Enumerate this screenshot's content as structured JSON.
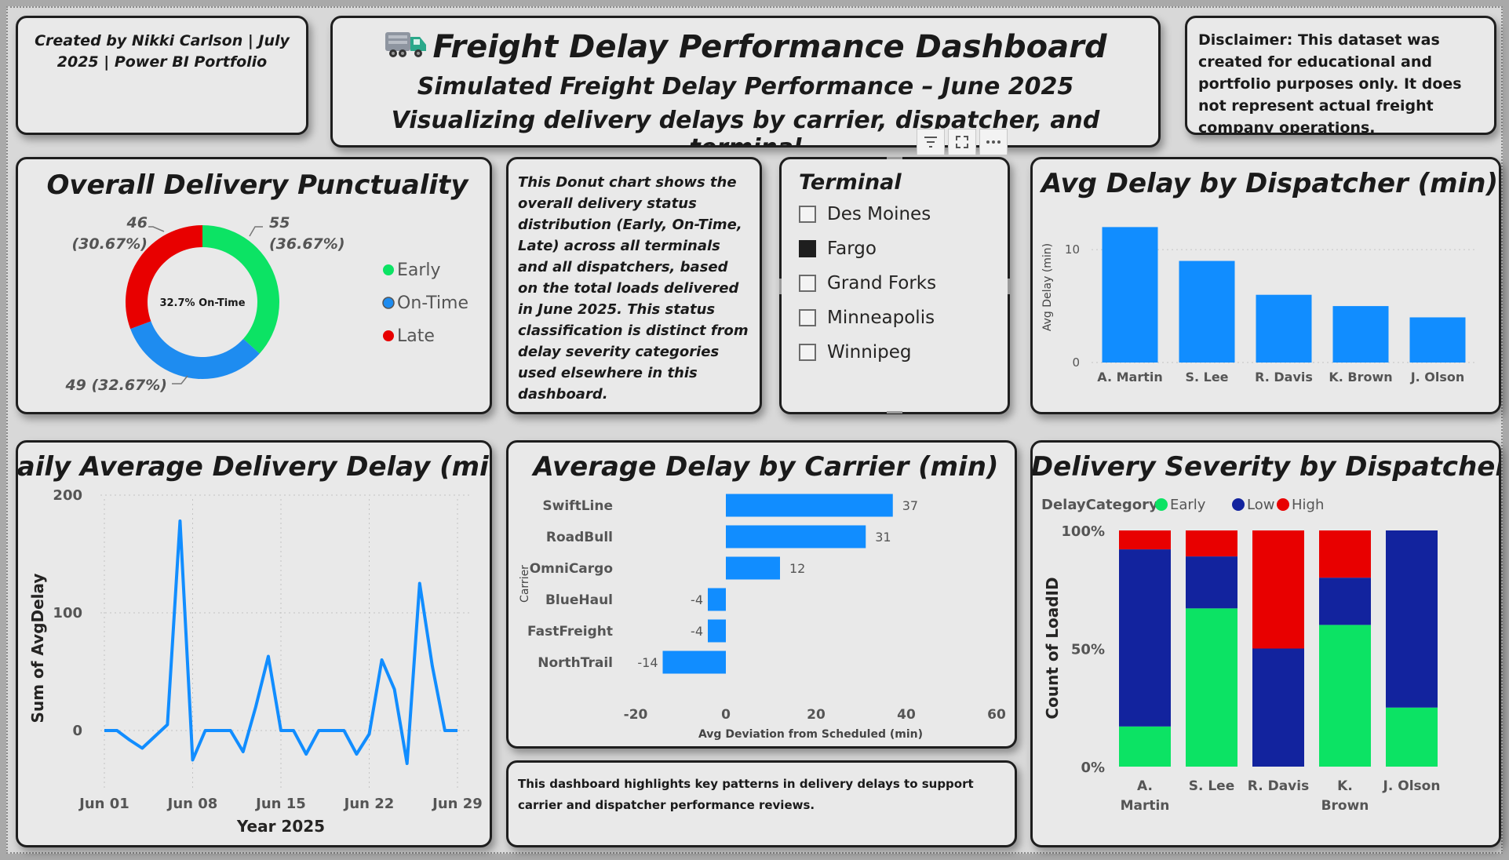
{
  "header": {
    "credit": "Created by Nikki Carlson | July 2025 | Power BI Portfolio",
    "title_icon": "truck-emoji",
    "title": "Freight Delay Performance Dashboard",
    "subtitle1": "Simulated Freight Delay Performance  – June 2025",
    "subtitle2": "Visualizing delivery delays by carrier, dispatcher, and terminal",
    "disclaimer": "Disclaimer: This dataset was created for educational and portfolio purposes only. It does not represent actual freight company operations."
  },
  "donut_note": "This Donut chart shows the overall delivery status distribution (Early, On-Time, Late) across all terminals and all dispatchers, based on the total loads delivered in June 2025.  This status classification is distinct from delay severity categories used elsewhere in this dashboard.",
  "footer_note": "This dashboard highlights key patterns in delivery delays to support carrier and dispatcher performance reviews.",
  "slicer": {
    "title": "Terminal",
    "items": [
      {
        "label": "Des Moines",
        "checked": false
      },
      {
        "label": "Fargo",
        "checked": true
      },
      {
        "label": "Grand Forks",
        "checked": false
      },
      {
        "label": "Minneapolis",
        "checked": false
      },
      {
        "label": "Winnipeg",
        "checked": false
      }
    ],
    "toolbar_icons": [
      "filter-icon",
      "focus-mode-icon",
      "more-options-icon"
    ]
  },
  "colors": {
    "early": "#0ce364",
    "ontime": "#1e8cf0",
    "late": "#e80000",
    "low": "#12239e",
    "bar": "#118dff"
  },
  "chart_data": [
    {
      "id": "punctuality",
      "type": "pie",
      "title": "Overall Delivery Punctuality",
      "center_label": "32.7% On-Time",
      "slices": [
        {
          "name": "Early",
          "value": 55,
          "label": "55 (36.67%)"
        },
        {
          "name": "On-Time",
          "value": 49,
          "label": "49 (32.67%)"
        },
        {
          "name": "Late",
          "value": 46,
          "label": "46 (30.67%)"
        }
      ],
      "legend": [
        "Early",
        "On-Time",
        "Late"
      ],
      "legend_position": "right"
    },
    {
      "id": "dispatcher_delay",
      "type": "bar",
      "title": "Avg Delay by Dispatcher (min)",
      "categories": [
        "A. Martin",
        "S. Lee",
        "R. Davis",
        "K. Brown",
        "J. Olson"
      ],
      "values": [
        12,
        9,
        6,
        5,
        4
      ],
      "ylabel": "Avg Delay (min)",
      "yticks": [
        "0",
        "10"
      ],
      "ylim": [
        0,
        13
      ],
      "grid": true
    },
    {
      "id": "daily_delay",
      "type": "line",
      "title": "Daily Average Delivery Delay (min)",
      "xlabel": "Year 2025",
      "ylabel": "Sum of AvgDelay",
      "x": [
        "Jun 01",
        "Jun 02",
        "Jun 03",
        "Jun 04",
        "Jun 05",
        "Jun 06",
        "Jun 07",
        "Jun 08",
        "Jun 09",
        "Jun 10",
        "Jun 11",
        "Jun 12",
        "Jun 13",
        "Jun 14",
        "Jun 15",
        "Jun 16",
        "Jun 17",
        "Jun 18",
        "Jun 19",
        "Jun 20",
        "Jun 21",
        "Jun 22",
        "Jun 23",
        "Jun 24",
        "Jun 25",
        "Jun 26",
        "Jun 27",
        "Jun 28",
        "Jun 29"
      ],
      "values": [
        0,
        0,
        -8,
        -15,
        -5,
        5,
        178,
        -25,
        0,
        0,
        0,
        -18,
        20,
        63,
        0,
        0,
        -20,
        0,
        0,
        0,
        -20,
        -3,
        60,
        35,
        -28,
        125,
        55,
        0,
        0
      ],
      "xticks": [
        "Jun 01",
        "Jun 08",
        "Jun 15",
        "Jun 22",
        "Jun 29"
      ],
      "yticks": [
        "0",
        "100",
        "200"
      ],
      "ylim": [
        -50,
        200
      ],
      "grid": true
    },
    {
      "id": "carrier_delay",
      "type": "bar",
      "orientation": "horizontal",
      "title": "Average Delay by Carrier (min)",
      "categories": [
        "SwiftLine",
        "RoadBull",
        "OmniCargo",
        "BlueHaul",
        "FastFreight",
        "NorthTrail"
      ],
      "values": [
        37,
        31,
        12,
        -4,
        -4,
        -14
      ],
      "xlabel": "Avg Deviation from Scheduled (min)",
      "ylabel": "Carrier",
      "xticks": [
        "-20",
        "0",
        "20",
        "40",
        "60"
      ],
      "xlim": [
        -20,
        60
      ]
    },
    {
      "id": "severity",
      "type": "bar",
      "stacked": "100%",
      "title": "Delivery Severity by Dispatcher",
      "legend_title": "DelayCategory",
      "legend_position": "top-left",
      "categories": [
        "A. Martin",
        "S. Lee",
        "R. Davis",
        "K. Brown",
        "J. Olson"
      ],
      "series": [
        {
          "name": "Early",
          "values": [
            17,
            67,
            0,
            60,
            25
          ]
        },
        {
          "name": "Low",
          "values": [
            75,
            22,
            50,
            20,
            75
          ]
        },
        {
          "name": "High",
          "values": [
            8,
            11,
            50,
            20,
            0
          ]
        }
      ],
      "ylabel": "Count of LoadID",
      "yticks": [
        "0%",
        "50%",
        "100%"
      ]
    }
  ]
}
